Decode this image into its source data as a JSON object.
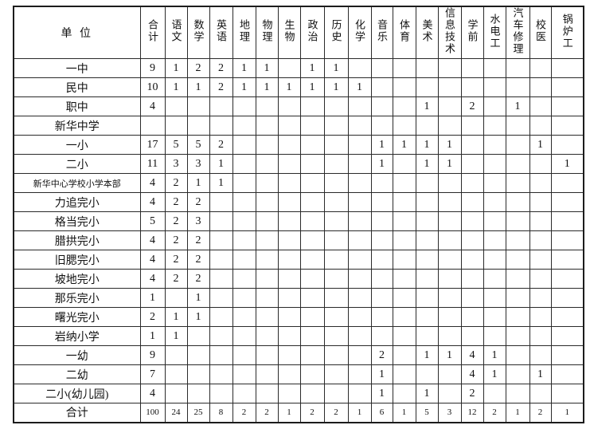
{
  "table": {
    "corner_header": "单 位",
    "columns": [
      "合计",
      "语文",
      "数学",
      "英语",
      "地理",
      "物理",
      "生物",
      "政治",
      "历史",
      "化学",
      "音乐",
      "体育",
      "美术",
      "信息技术",
      "学前",
      "水电工",
      "汽车修理",
      "校医",
      "锅炉工"
    ],
    "rows": [
      {
        "name": "一中",
        "values": [
          "9",
          "1",
          "2",
          "2",
          "1",
          "1",
          "",
          "1",
          "1",
          "",
          "",
          "",
          "",
          "",
          "",
          "",
          "",
          "",
          ""
        ]
      },
      {
        "name": "民中",
        "values": [
          "10",
          "1",
          "1",
          "2",
          "1",
          "1",
          "1",
          "1",
          "1",
          "1",
          "",
          "",
          "",
          "",
          "",
          "",
          "",
          "",
          ""
        ]
      },
      {
        "name": "职中",
        "values": [
          "4",
          "",
          "",
          "",
          "",
          "",
          "",
          "",
          "",
          "",
          "",
          "",
          "1",
          "",
          "2",
          "",
          "1",
          "",
          ""
        ]
      },
      {
        "name": "新华中学",
        "values": [
          "",
          "",
          "",
          "",
          "",
          "",
          "",
          "",
          "",
          "",
          "",
          "",
          "",
          "",
          "",
          "",
          "",
          "",
          ""
        ]
      },
      {
        "name": "一小",
        "values": [
          "17",
          "5",
          "5",
          "2",
          "",
          "",
          "",
          "",
          "",
          "",
          "1",
          "1",
          "1",
          "1",
          "",
          "",
          "",
          "1",
          ""
        ]
      },
      {
        "name": "二小",
        "values": [
          "11",
          "3",
          "3",
          "1",
          "",
          "",
          "",
          "",
          "",
          "",
          "1",
          "",
          "1",
          "1",
          "",
          "",
          "",
          "",
          "1"
        ]
      },
      {
        "name": "新华中心学校小学本部",
        "small_label": true,
        "values": [
          "4",
          "2",
          "1",
          "1",
          "",
          "",
          "",
          "",
          "",
          "",
          "",
          "",
          "",
          "",
          "",
          "",
          "",
          "",
          ""
        ]
      },
      {
        "name": "力追完小",
        "values": [
          "4",
          "2",
          "2",
          "",
          "",
          "",
          "",
          "",
          "",
          "",
          "",
          "",
          "",
          "",
          "",
          "",
          "",
          "",
          ""
        ]
      },
      {
        "name": "格当完小",
        "values": [
          "5",
          "2",
          "3",
          "",
          "",
          "",
          "",
          "",
          "",
          "",
          "",
          "",
          "",
          "",
          "",
          "",
          "",
          "",
          ""
        ]
      },
      {
        "name": "腊拱完小",
        "values": [
          "4",
          "2",
          "2",
          "",
          "",
          "",
          "",
          "",
          "",
          "",
          "",
          "",
          "",
          "",
          "",
          "",
          "",
          "",
          ""
        ]
      },
      {
        "name": "旧腮完小",
        "values": [
          "4",
          "2",
          "2",
          "",
          "",
          "",
          "",
          "",
          "",
          "",
          "",
          "",
          "",
          "",
          "",
          "",
          "",
          "",
          ""
        ]
      },
      {
        "name": "坡地完小",
        "values": [
          "4",
          "2",
          "2",
          "",
          "",
          "",
          "",
          "",
          "",
          "",
          "",
          "",
          "",
          "",
          "",
          "",
          "",
          "",
          ""
        ]
      },
      {
        "name": "那乐完小",
        "values": [
          "1",
          "",
          "1",
          "",
          "",
          "",
          "",
          "",
          "",
          "",
          "",
          "",
          "",
          "",
          "",
          "",
          "",
          "",
          ""
        ]
      },
      {
        "name": "曙光完小",
        "values": [
          "2",
          "1",
          "1",
          "",
          "",
          "",
          "",
          "",
          "",
          "",
          "",
          "",
          "",
          "",
          "",
          "",
          "",
          "",
          ""
        ]
      },
      {
        "name": "岩纳小学",
        "values": [
          "1",
          "1",
          "",
          "",
          "",
          "",
          "",
          "",
          "",
          "",
          "",
          "",
          "",
          "",
          "",
          "",
          "",
          "",
          ""
        ]
      },
      {
        "name": "一幼",
        "values": [
          "9",
          "",
          "",
          "",
          "",
          "",
          "",
          "",
          "",
          "",
          "2",
          "",
          "1",
          "1",
          "4",
          "1",
          "",
          "",
          ""
        ]
      },
      {
        "name": "二幼",
        "values": [
          "7",
          "",
          "",
          "",
          "",
          "",
          "",
          "",
          "",
          "",
          "1",
          "",
          "",
          "",
          "4",
          "1",
          "",
          "1",
          ""
        ]
      },
      {
        "name": "二小(幼儿园)",
        "values": [
          "4",
          "",
          "",
          "",
          "",
          "",
          "",
          "",
          "",
          "",
          "1",
          "",
          "1",
          "",
          "2",
          "",
          "",
          "",
          ""
        ]
      },
      {
        "name": "合计",
        "total": true,
        "values": [
          "100",
          "24",
          "25",
          "8",
          "2",
          "2",
          "1",
          "2",
          "2",
          "1",
          "6",
          "1",
          "5",
          "3",
          "12",
          "2",
          "1",
          "2",
          "1"
        ]
      }
    ]
  }
}
